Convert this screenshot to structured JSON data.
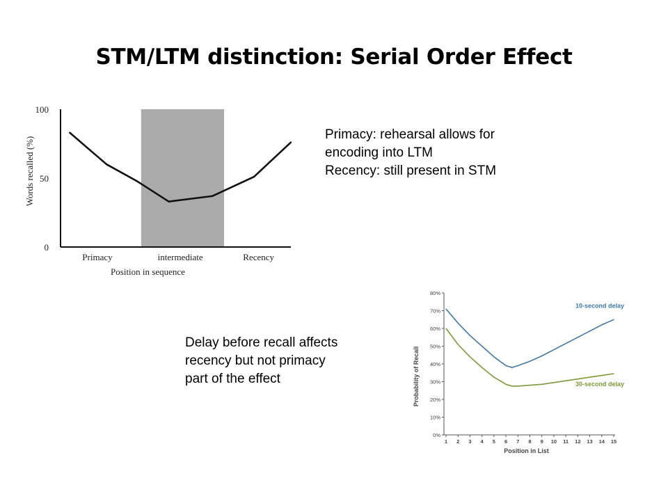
{
  "slide": {
    "title": "STM/LTM distinction: Serial Order Effect",
    "note_top": [
      "Primacy: rehearsal allows for",
      "encoding into LTM",
      "Recency: still present in STM"
    ],
    "note_bottom": [
      "Delay before recall affects",
      "recency but not primacy",
      "part of the effect"
    ]
  },
  "chart_data": [
    {
      "type": "line",
      "title": "",
      "xlabel": "Position in sequence",
      "ylabel": "Words recalled (%)",
      "x_range": [
        0,
        10
      ],
      "ylim": [
        0,
        100
      ],
      "yticks": [
        0,
        50,
        100
      ],
      "categories": [
        "Primacy",
        "intermediate",
        "Recency"
      ],
      "category_positions": [
        1.6,
        5.2,
        8.6
      ],
      "shaded_region": {
        "from": 3.5,
        "to": 7.1,
        "color": "#ababab"
      },
      "series": [
        {
          "name": "",
          "color": "#111111",
          "x": [
            0.4,
            2.0,
            3.3,
            4.7,
            6.6,
            8.4,
            10.0
          ],
          "y": [
            83,
            60,
            48,
            33,
            37,
            51,
            76
          ]
        }
      ],
      "grid": false
    },
    {
      "type": "line",
      "title": "",
      "xlabel": "Position in List",
      "ylabel": "Probability of Recall",
      "xlim": [
        1,
        15
      ],
      "ylim": [
        0,
        80
      ],
      "xticks": [
        1,
        2,
        3,
        4,
        5,
        6,
        7,
        8,
        9,
        10,
        11,
        12,
        13,
        14,
        15
      ],
      "yticks": [
        0,
        10,
        20,
        30,
        40,
        50,
        60,
        70,
        80
      ],
      "ytick_labels": [
        "0%",
        "10%",
        "20%",
        "30%",
        "40%",
        "50%",
        "60%",
        "70%",
        "80%"
      ],
      "grid": false,
      "series": [
        {
          "name": "10-second delay",
          "color": "#3f78a8",
          "x": [
            1,
            2,
            3,
            4,
            5,
            6,
            6.5,
            7,
            8,
            9,
            10,
            11,
            12,
            13,
            14,
            15
          ],
          "y": [
            71,
            63,
            56,
            50,
            44,
            39,
            38,
            39,
            41.5,
            44.5,
            48,
            51.5,
            55,
            58.5,
            62,
            65
          ]
        },
        {
          "name": "30-second delay",
          "color": "#7d9a3a",
          "x": [
            1,
            2,
            3,
            4,
            5,
            6,
            6.5,
            7,
            8,
            9,
            10,
            11,
            12,
            13,
            14,
            15
          ],
          "y": [
            60,
            51,
            44,
            38,
            32.5,
            28.5,
            27.5,
            27.5,
            28,
            28.5,
            29.5,
            30.5,
            31.5,
            32.5,
            33.5,
            34.5
          ]
        }
      ]
    }
  ]
}
